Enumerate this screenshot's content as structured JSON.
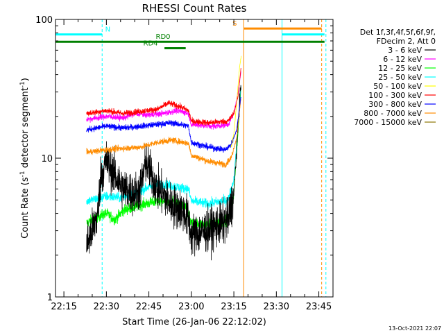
{
  "chart_data": {
    "type": "line",
    "title": "RHESSI Count Rates",
    "xlabel": "Start Time (26-Jan-06 22:12:02)",
    "ylabel_main": "Count Rate (s",
    "ylabel_sup1": "-1",
    "ylabel_mid": " detector segment",
    "ylabel_sup2": "-1",
    "ylabel_end": ")",
    "xscale": "time",
    "yscale": "log",
    "xlim": [
      "22:12:02",
      "23:50:00"
    ],
    "ylim": [
      1,
      100
    ],
    "xticks": [
      "22:15",
      "22:30",
      "22:45",
      "23:00",
      "23:15",
      "23:30",
      "23:45"
    ],
    "yticks": [
      "1",
      "10",
      "100"
    ],
    "legend_position": "top-right",
    "legend_header": [
      "Det 1f,3f,4f,5f,6f,9f,",
      "FDecim 2, Att 0"
    ],
    "series": [
      {
        "name": "3 - 6 keV",
        "color": "#000000",
        "noise": 0.35,
        "points": [
          [
            "22:23",
            2.4
          ],
          [
            "22:25",
            3.0
          ],
          [
            "22:27",
            4.0
          ],
          [
            "22:28",
            7.5
          ],
          [
            "22:30",
            9.5
          ],
          [
            "22:33",
            7.5
          ],
          [
            "22:36",
            6.0
          ],
          [
            "22:40",
            5.5
          ],
          [
            "22:42",
            6.0
          ],
          [
            "22:44",
            9.5
          ],
          [
            "22:46",
            7.5
          ],
          [
            "22:48",
            6.0
          ],
          [
            "22:50",
            5.5
          ],
          [
            "22:53",
            4.6
          ],
          [
            "22:57",
            4.2
          ],
          [
            "22:59",
            3.6
          ],
          [
            "23:00",
            2.8
          ],
          [
            "23:05",
            3.0
          ],
          [
            "23:10",
            3.3
          ],
          [
            "23:13",
            3.6
          ],
          [
            "23:15",
            5.5
          ],
          [
            "23:16",
            12
          ],
          [
            "23:17",
            25
          ],
          [
            "23:17.5",
            35
          ]
        ]
      },
      {
        "name": "6 - 12 keV",
        "color": "#ff00ff",
        "noise": 0.05,
        "points": [
          [
            "22:23",
            19
          ],
          [
            "22:30",
            20
          ],
          [
            "22:36",
            19.5
          ],
          [
            "22:40",
            21
          ],
          [
            "22:44",
            20.5
          ],
          [
            "22:50",
            21
          ],
          [
            "22:55",
            22
          ],
          [
            "22:59",
            21
          ],
          [
            "23:00",
            17.5
          ],
          [
            "23:08",
            17
          ],
          [
            "23:13",
            17.5
          ],
          [
            "23:15",
            21
          ],
          [
            "23:16.5",
            30
          ],
          [
            "23:17.5",
            42
          ]
        ]
      },
      {
        "name": "12 - 25 keV",
        "color": "#00ff00",
        "noise": 0.09,
        "points": [
          [
            "22:23",
            3.4
          ],
          [
            "22:27",
            3.8
          ],
          [
            "22:30",
            4.0
          ],
          [
            "22:33",
            3.6
          ],
          [
            "22:36",
            4.2
          ],
          [
            "22:42",
            4.6
          ],
          [
            "22:48",
            4.9
          ],
          [
            "22:54",
            4.8
          ],
          [
            "22:58",
            4.4
          ],
          [
            "23:00",
            3.4
          ],
          [
            "23:06",
            3.3
          ],
          [
            "23:13",
            3.6
          ],
          [
            "23:15",
            5.5
          ],
          [
            "23:16",
            11
          ],
          [
            "23:17.5",
            32
          ]
        ]
      },
      {
        "name": "25 - 50 keV",
        "color": "#00ffff",
        "noise": 0.08,
        "points": [
          [
            "22:23",
            4.9
          ],
          [
            "22:30",
            5.3
          ],
          [
            "22:35",
            5.2
          ],
          [
            "22:40",
            5.6
          ],
          [
            "22:45",
            6.2
          ],
          [
            "22:50",
            6.5
          ],
          [
            "22:55",
            6.2
          ],
          [
            "22:59",
            6.0
          ],
          [
            "23:00",
            4.9
          ],
          [
            "23:06",
            4.7
          ],
          [
            "23:13",
            5.0
          ],
          [
            "23:15",
            7
          ],
          [
            "23:16",
            13
          ],
          [
            "23:17.5",
            33
          ]
        ]
      },
      {
        "name": "50 - 100 keV",
        "color": "#ffff00",
        "noise": 0.05,
        "points": [
          [
            "23:14",
            12
          ],
          [
            "23:15",
            15
          ],
          [
            "23:16",
            25
          ],
          [
            "23:17",
            45
          ],
          [
            "23:17.6",
            55
          ]
        ]
      },
      {
        "name": "100 - 300 keV",
        "color": "#ff0000",
        "noise": 0.05,
        "points": [
          [
            "22:23",
            21
          ],
          [
            "22:30",
            22
          ],
          [
            "22:36",
            21
          ],
          [
            "22:40",
            21.5
          ],
          [
            "22:44",
            22
          ],
          [
            "22:48",
            22.5
          ],
          [
            "22:52",
            25
          ],
          [
            "22:56",
            23.5
          ],
          [
            "22:59",
            22
          ],
          [
            "23:00",
            18.5
          ],
          [
            "23:06",
            18
          ],
          [
            "23:13",
            18.5
          ],
          [
            "23:15",
            21
          ],
          [
            "23:16.5",
            28
          ],
          [
            "23:17.5",
            45
          ]
        ]
      },
      {
        "name": "300 - 800 keV",
        "color": "#0000ff",
        "noise": 0.05,
        "points": [
          [
            "22:23",
            16
          ],
          [
            "22:30",
            17
          ],
          [
            "22:36",
            16.5
          ],
          [
            "22:42",
            17
          ],
          [
            "22:48",
            17.5
          ],
          [
            "22:53",
            18
          ],
          [
            "22:59",
            17
          ],
          [
            "23:00",
            13
          ],
          [
            "23:06",
            12
          ],
          [
            "23:12",
            11.5
          ],
          [
            "23:14",
            12.5
          ],
          [
            "23:16",
            16
          ],
          [
            "23:17.5",
            28
          ]
        ]
      },
      {
        "name": "800 - 7000 keV",
        "color": "#ff8c00",
        "noise": 0.05,
        "points": [
          [
            "22:23",
            11
          ],
          [
            "22:30",
            11.5
          ],
          [
            "22:36",
            11.8
          ],
          [
            "22:42",
            12
          ],
          [
            "22:48",
            13
          ],
          [
            "22:53",
            13.5
          ],
          [
            "22:59",
            12.8
          ],
          [
            "23:00",
            10.5
          ],
          [
            "23:06",
            9.5
          ],
          [
            "23:12",
            9.0
          ],
          [
            "23:14",
            10
          ],
          [
            "23:16",
            14
          ],
          [
            "23:17.5",
            27
          ]
        ]
      },
      {
        "name": "7000 - 15000 keV",
        "color": "#8b7500",
        "noise": 0.0,
        "points": []
      }
    ],
    "attenuator_bars": [
      {
        "label": "N",
        "color": "#00ffff",
        "from": "22:12:02",
        "to": "22:28.5",
        "y": 78,
        "label_at": "22:30.5"
      },
      {
        "label": "",
        "color": "#00ffff",
        "from": "23:32",
        "to": "23:47",
        "y": 78
      },
      {
        "label": "S",
        "color": "#ff8c00",
        "from": "23:18.5",
        "to": "23:46",
        "y": 86,
        "label_at": "23:15.3"
      },
      {
        "label": "RD0",
        "color": "#008000",
        "from": "22:12:02",
        "to": "23:47",
        "y": 69,
        "label_at": "22:50"
      },
      {
        "label": "RD4",
        "color": "#008000",
        "from": "22:50.5",
        "to": "22:58",
        "y": 62,
        "label_at": "22:45.6"
      }
    ],
    "vertical_markers": [
      {
        "x": "22:12:02",
        "color": "#00ffff",
        "style": "solid"
      },
      {
        "x": "22:28.5",
        "color": "#00ffff",
        "style": "dashed"
      },
      {
        "x": "23:18.5",
        "color": "#ff8c00",
        "style": "solid"
      },
      {
        "x": "23:32",
        "color": "#00ffff",
        "style": "solid"
      },
      {
        "x": "23:46",
        "color": "#ff8c00",
        "style": "dashed"
      },
      {
        "x": "23:47.5",
        "color": "#00ffff",
        "style": "dashed"
      }
    ]
  },
  "footer": {
    "timestamp": "13-Oct-2021 22:07"
  }
}
